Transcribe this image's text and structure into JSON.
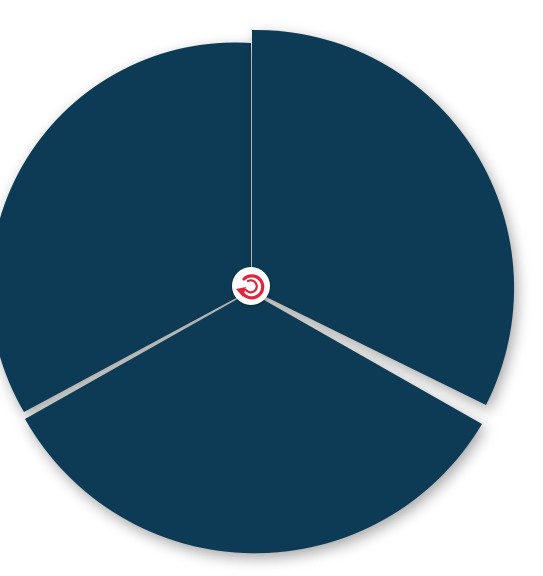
{
  "diagram": {
    "type": "segmented-cycle",
    "segment_count": 3,
    "segments": [
      {
        "id": "segment-right",
        "color": "#0a3a54"
      },
      {
        "id": "segment-bottom",
        "color": "#0a3a54"
      },
      {
        "id": "segment-left",
        "color": "#0a3a54"
      }
    ],
    "center_icon": {
      "name": "refresh-cycle-icon",
      "color": "#e0243c",
      "background": "#ffffff"
    }
  }
}
